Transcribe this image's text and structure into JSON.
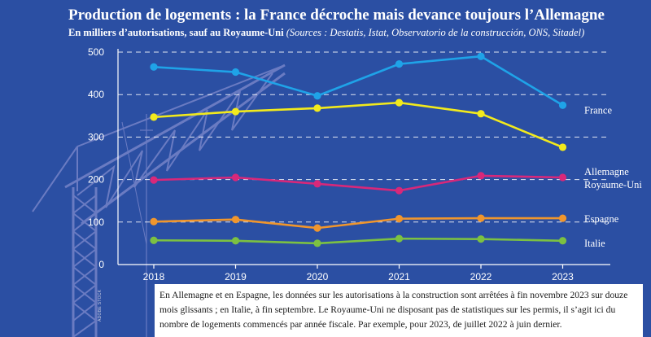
{
  "title": "Production de logements : la France décroche mais devance toujours l’Allemagne",
  "subtitle": "En milliers d’autorisations, sauf au Royaume-Uni",
  "sources": "(Sources : Destatis, Istat, Observatorio de la construcción, ONS, Sitadel)",
  "note": "En Allemagne et en Espagne, les données sur les autorisations à la construction sont arrêtées à fin novembre 2023 sur douze mois glissants ; en Italie, à fin septembre. Le Royaume-Uni ne disposant pas de statistiques sur les permis, il s’agit ici du nombre de logements commencés par année fiscale. Par exemple, pour 2023, de juillet 2022 à juin dernier.",
  "photo_credit": "ADOBE STOCK",
  "chart_data": {
    "type": "line",
    "title": "Production de logements : la France décroche mais devance toujours l’Allemagne",
    "xlabel": "",
    "ylabel": "En milliers d’autorisations",
    "categories": [
      "2018",
      "2019",
      "2020",
      "2021",
      "2022",
      "2023"
    ],
    "ylim": [
      0,
      500
    ],
    "yticks": [
      "0",
      "100",
      "200",
      "300",
      "400",
      "500"
    ],
    "grid": true,
    "series": [
      {
        "name": "France",
        "color": "#1fa3e8",
        "values": [
          465,
          453,
          397,
          472,
          490,
          375
        ]
      },
      {
        "name": "Allemagne",
        "color": "#f2ea1c",
        "values": [
          347,
          360,
          368,
          381,
          355,
          276
        ]
      },
      {
        "name": "Royaume-Uni",
        "color": "#d8287a",
        "values": [
          199,
          205,
          190,
          174,
          209,
          205
        ]
      },
      {
        "name": "Espagne",
        "color": "#f0962d",
        "values": [
          101,
          106,
          86,
          108,
          109,
          109
        ]
      },
      {
        "name": "Italie",
        "color": "#7cc142",
        "values": [
          57,
          56,
          50,
          61,
          60,
          56
        ]
      }
    ]
  }
}
